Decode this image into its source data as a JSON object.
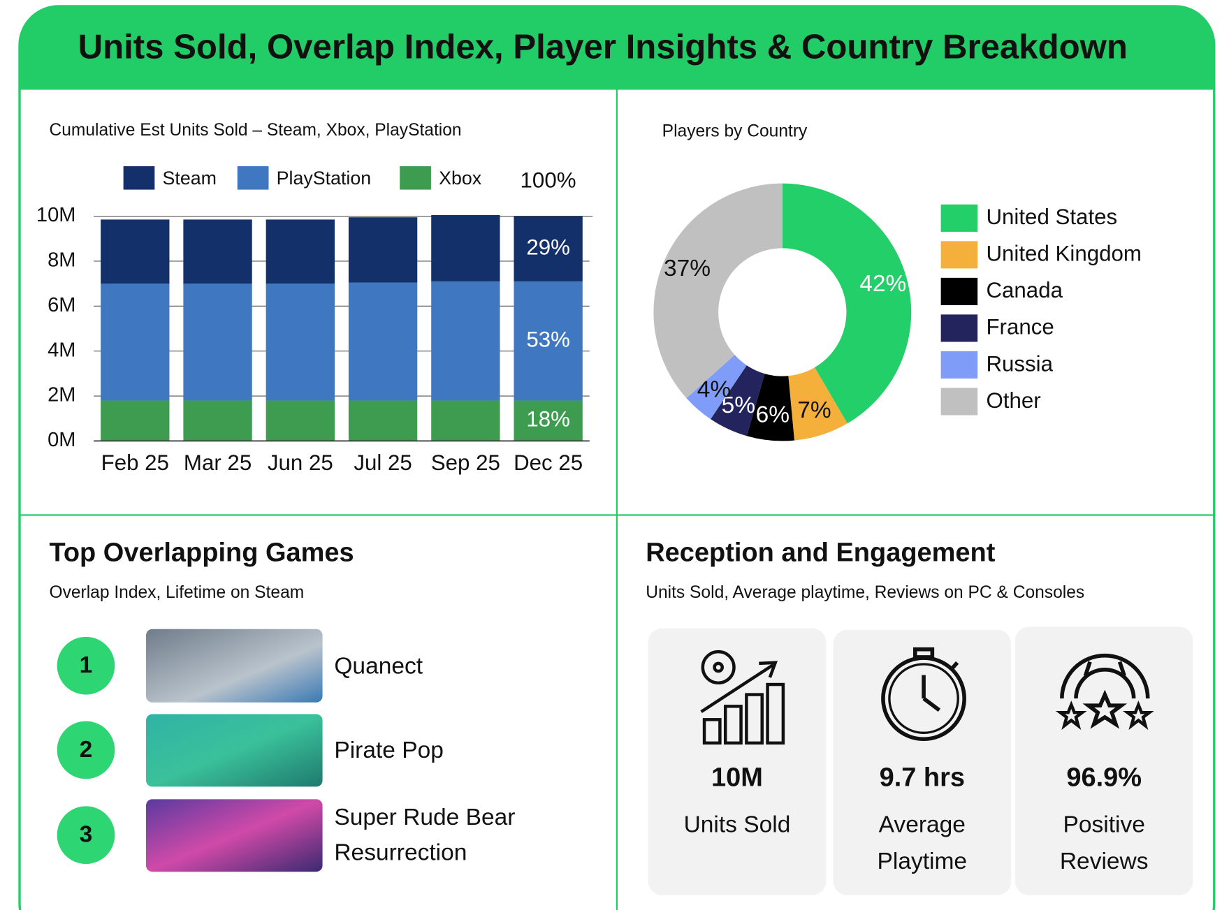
{
  "title": "Units Sold, Overlap Index, Player Insights & Country Breakdown",
  "chart_data": [
    {
      "type": "bar",
      "stacked": true,
      "title": "Cumulative Est Units Sold – Steam, Xbox, PlayStation",
      "categories": [
        "Feb 25",
        "Mar 25",
        "Jun 25",
        "Jul 25",
        "Sep 25",
        "Dec 25"
      ],
      "series": [
        {
          "name": "Steam",
          "color": "#14306a",
          "values": [
            2.85,
            2.85,
            2.85,
            2.9,
            2.95,
            2.9
          ],
          "value_labels": [
            null,
            null,
            null,
            null,
            null,
            "29%"
          ]
        },
        {
          "name": "PlayStation",
          "color": "#3f78c0",
          "values": [
            5.2,
            5.2,
            5.2,
            5.25,
            5.3,
            5.3
          ],
          "value_labels": [
            null,
            null,
            null,
            null,
            null,
            "53%"
          ]
        },
        {
          "name": "Xbox",
          "color": "#3d9c4f",
          "values": [
            1.8,
            1.8,
            1.8,
            1.8,
            1.8,
            1.8
          ],
          "value_labels": [
            null,
            null,
            null,
            null,
            null,
            "18%"
          ]
        }
      ],
      "ylim": [
        0,
        10
      ],
      "yticks": [
        {
          "value": 0,
          "label": "0M"
        },
        {
          "value": 2,
          "label": "2M"
        },
        {
          "value": 4,
          "label": "4M"
        },
        {
          "value": 6,
          "label": "6M"
        },
        {
          "value": 8,
          "label": "8M"
        },
        {
          "value": 10,
          "label": "10M"
        }
      ],
      "y2lim": [
        0,
        100
      ],
      "y2ticks": [
        {
          "value": 100,
          "label": "100%"
        }
      ],
      "grid": true
    },
    {
      "type": "pie",
      "donut": true,
      "title": "Players by Country",
      "categories": [
        "United States",
        "United Kingdom",
        "Canada",
        "France",
        "Russia",
        "Other"
      ],
      "values": [
        42,
        7,
        6,
        5,
        4,
        37
      ],
      "value_labels": [
        "42%",
        "7%",
        "6%",
        "5%",
        "4%",
        "37%"
      ],
      "colors": [
        "#22cf68",
        "#f5b03c",
        "#000000",
        "#23235e",
        "#7f9cf8",
        "#c0c0c0"
      ]
    }
  ],
  "overlap": {
    "title": "Top Overlapping Games",
    "subtitle": "Overlap Index, Lifetime on Steam",
    "games": [
      {
        "rank": 1,
        "name": "Quanect"
      },
      {
        "rank": 2,
        "name": "Pirate Pop"
      },
      {
        "rank": 3,
        "name": "Super Rude Bear Resurrection"
      }
    ]
  },
  "reception": {
    "title": "Reception and Engagement",
    "subtitle": "Units Sold, Average playtime, Reviews on PC & Consoles",
    "stats": [
      {
        "value": "10M",
        "label": "Units Sold"
      },
      {
        "value": "9.7 hrs",
        "label": "Average Playtime"
      },
      {
        "value": "96.9%",
        "label": "Positive Reviews"
      }
    ]
  }
}
